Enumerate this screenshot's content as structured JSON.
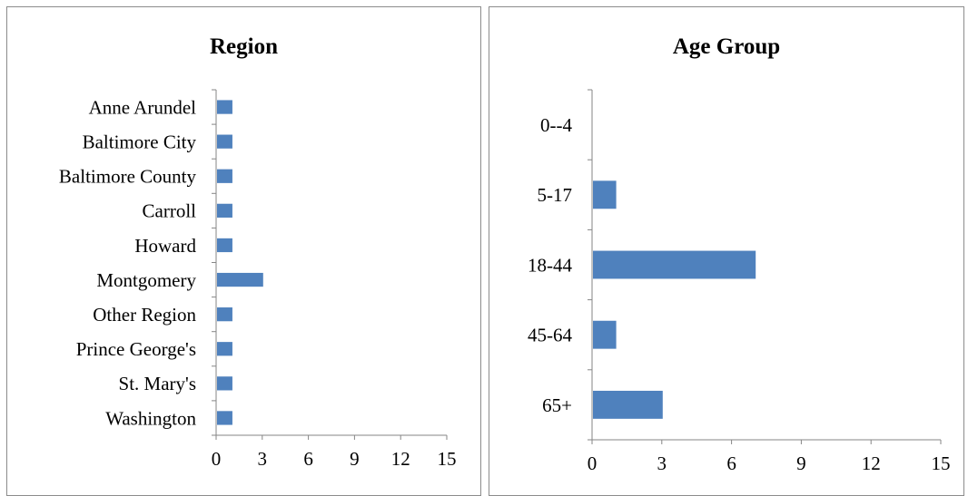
{
  "chart_data": [
    {
      "type": "bar",
      "orientation": "horizontal",
      "title": "Region",
      "categories": [
        "Anne Arundel",
        "Baltimore City",
        "Baltimore County",
        "Carroll",
        "Howard",
        "Montgomery",
        "Other Region",
        "Prince George's",
        "St. Mary's",
        "Washington"
      ],
      "values": [
        1,
        1,
        1,
        1,
        1,
        3,
        1,
        1,
        1,
        1
      ],
      "xlim": [
        0,
        15
      ],
      "xticks": [
        "0",
        "3",
        "6",
        "9",
        "12",
        "15"
      ],
      "grid": false,
      "bar_color": "#4f81bd"
    },
    {
      "type": "bar",
      "orientation": "horizontal",
      "title": "Age Group",
      "categories": [
        "0--4",
        "5-17",
        "18-44",
        "45-64",
        "65+"
      ],
      "values": [
        0,
        1,
        7,
        1,
        3
      ],
      "xlim": [
        0,
        15
      ],
      "xticks": [
        "0",
        "3",
        "6",
        "9",
        "12",
        "15"
      ],
      "grid": false,
      "bar_color": "#4f81bd"
    }
  ]
}
